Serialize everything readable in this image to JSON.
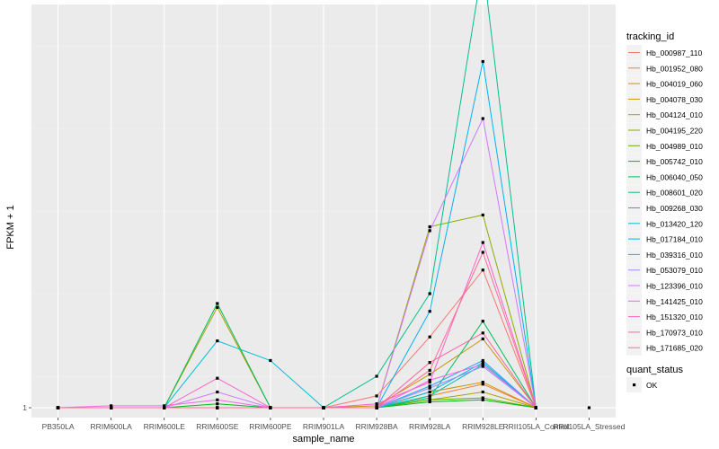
{
  "chart_data": {
    "type": "line",
    "title": "",
    "xlabel": "sample_name",
    "ylabel": "FPKM + 1",
    "categories": [
      "PB350LA",
      "RRIM600LA",
      "RRIM600LE",
      "RRIM600SE",
      "RRIM600PE",
      "RRIM901LA",
      "RRIM928BA",
      "RRIM928LA",
      "RRIM928LE",
      "RRII105LA_Control",
      "RRII105LA_Stressed"
    ],
    "y_tick_labels": [
      "1"
    ],
    "y_ticks": [
      1
    ],
    "ylim": [
      0.5,
      21.5
    ],
    "grid": true,
    "legend_position": "right",
    "legend": {
      "title": "tracking_id",
      "quant_title": "quant_status",
      "quant_items": [
        {
          "label": "OK"
        }
      ]
    },
    "series": [
      {
        "name": "Hb_000987_110",
        "color": "#F8766D",
        "values": [
          1,
          1,
          1,
          1,
          1,
          1,
          1.6,
          4.6,
          8.0,
          1,
          null
        ]
      },
      {
        "name": "Hb_001952_080",
        "color": "#EC8239",
        "values": [
          1,
          1,
          1,
          1,
          1,
          1,
          1,
          1.6,
          2.2,
          1,
          null
        ]
      },
      {
        "name": "Hb_004019_060",
        "color": "#DB8E00",
        "values": [
          1,
          1,
          1,
          1,
          1,
          1,
          1,
          1.8,
          2.3,
          1,
          null
        ]
      },
      {
        "name": "Hb_004078_030",
        "color": "#C79800",
        "values": [
          1,
          1,
          1,
          1,
          1,
          1,
          1.1,
          2.7,
          4.5,
          1,
          null
        ]
      },
      {
        "name": "Hb_004124_010",
        "color": "#AEA200",
        "values": [
          1,
          1,
          1,
          6.1,
          1,
          1,
          1,
          1.4,
          1.8,
          1,
          null
        ]
      },
      {
        "name": "Hb_004195_220",
        "color": "#8FAA00",
        "values": [
          1,
          1,
          1,
          1,
          1,
          1,
          1,
          10.2,
          10.8,
          1,
          null
        ]
      },
      {
        "name": "Hb_004989_010",
        "color": "#64B200",
        "values": [
          1,
          1,
          1,
          1,
          1,
          1,
          1,
          1.4,
          1.5,
          1,
          null
        ]
      },
      {
        "name": "Hb_005742_010",
        "color": "#00B81B",
        "values": [
          1,
          1,
          1,
          1.2,
          1,
          1,
          1,
          1.3,
          1.4,
          1,
          null
        ]
      },
      {
        "name": "Hb_006040_050",
        "color": "#00BD5C",
        "values": [
          1,
          1,
          1,
          6.3,
          1,
          1,
          1,
          1.5,
          5.4,
          1,
          null
        ]
      },
      {
        "name": "Hb_008601_020",
        "color": "#00C08D",
        "values": [
          1,
          1,
          1,
          1,
          1,
          1,
          2.6,
          6.8,
          23.6,
          1,
          null
        ]
      },
      {
        "name": "Hb_009268_030",
        "color": "#00C1B2",
        "values": [
          1,
          1,
          1,
          1,
          1,
          1,
          1,
          1.6,
          3.2,
          1,
          null
        ]
      },
      {
        "name": "Hb_013420_120",
        "color": "#00BCD6",
        "values": [
          1,
          1,
          1,
          4.4,
          3.4,
          1,
          1,
          1.8,
          3.3,
          1,
          null
        ]
      },
      {
        "name": "Hb_017184_010",
        "color": "#00B3F2",
        "values": [
          1,
          1,
          1,
          1,
          1,
          1,
          1,
          5.9,
          18.6,
          1,
          null
        ]
      },
      {
        "name": "Hb_039316_010",
        "color": "#29A3FF",
        "values": [
          1,
          1,
          1,
          1,
          1,
          1,
          1,
          2.1,
          3.4,
          1,
          null
        ]
      },
      {
        "name": "Hb_053079_010",
        "color": "#9C8DFF",
        "values": [
          1,
          1,
          1,
          1,
          1,
          1,
          1,
          2.0,
          3.1,
          1,
          null
        ]
      },
      {
        "name": "Hb_123396_010",
        "color": "#D277FF",
        "values": [
          1,
          1,
          1,
          1.8,
          1,
          1,
          1,
          10.0,
          15.7,
          1,
          null
        ]
      },
      {
        "name": "Hb_141425_010",
        "color": "#F166E8",
        "values": [
          1,
          1.1,
          1.1,
          1.4,
          1,
          1,
          1,
          2.4,
          3.2,
          1,
          null
        ]
      },
      {
        "name": "Hb_151320_010",
        "color": "#FF61C7",
        "values": [
          1,
          1,
          1,
          2.5,
          1,
          1,
          1.2,
          2.3,
          9.4,
          1,
          null
        ]
      },
      {
        "name": "Hb_170973_010",
        "color": "#FF63A0",
        "values": [
          1,
          1,
          1,
          1,
          1,
          1,
          1,
          3.3,
          4.8,
          1,
          null
        ]
      },
      {
        "name": "Hb_171685_020",
        "color": "#FF6C91",
        "values": [
          1,
          1,
          1,
          1,
          1,
          1,
          1,
          2.9,
          8.9,
          1,
          null
        ]
      }
    ],
    "stressed_point": {
      "category_index": 10,
      "value": 1
    }
  }
}
